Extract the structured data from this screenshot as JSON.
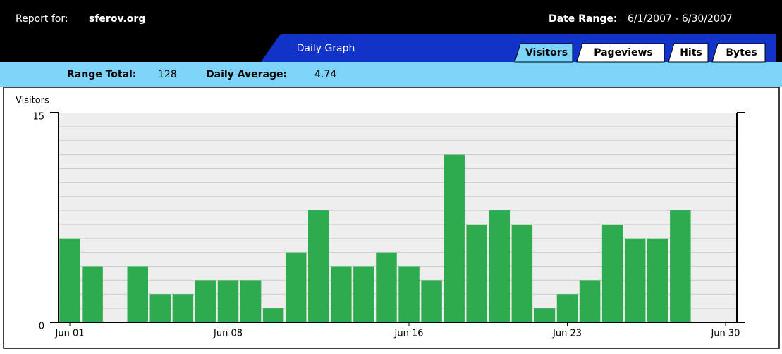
{
  "header": {
    "report_label": "Report for:",
    "site": "sferov.org",
    "date_label": "Date Range:",
    "date_range": "6/1/2007 - 6/30/2007"
  },
  "graph_tab": "Daily Graph",
  "tabs": [
    "Visitors",
    "Pageviews",
    "Hits",
    "Bytes"
  ],
  "summary": {
    "total_label": "Range Total:",
    "total": "128",
    "average_label": "Daily Average:",
    "average": "4.74"
  },
  "chart_data": {
    "type": "bar",
    "ylabel": "Visitors",
    "color": "#2eab4f",
    "categories": [
      "Jun 01",
      null,
      null,
      null,
      null,
      null,
      null,
      "Jun 08",
      null,
      null,
      null,
      null,
      null,
      null,
      null,
      "Jun 16",
      null,
      null,
      null,
      null,
      null,
      null,
      "Jun 23",
      null,
      null,
      null,
      null,
      null,
      null,
      "Jun 30"
    ],
    "values": [
      6,
      4,
      0,
      4,
      2,
      2,
      3,
      3,
      3,
      1,
      5,
      8,
      4,
      4,
      5,
      4,
      3,
      12,
      7,
      8,
      7,
      1,
      2,
      3,
      7,
      6,
      6,
      8,
      0,
      0
    ],
    "ylim": [
      0,
      15
    ],
    "yticks": [
      0,
      15
    ],
    "minor_yticks": [
      1,
      2,
      3,
      4,
      5,
      6,
      7,
      8,
      9,
      10,
      11,
      12,
      13,
      14
    ],
    "grid": true
  }
}
